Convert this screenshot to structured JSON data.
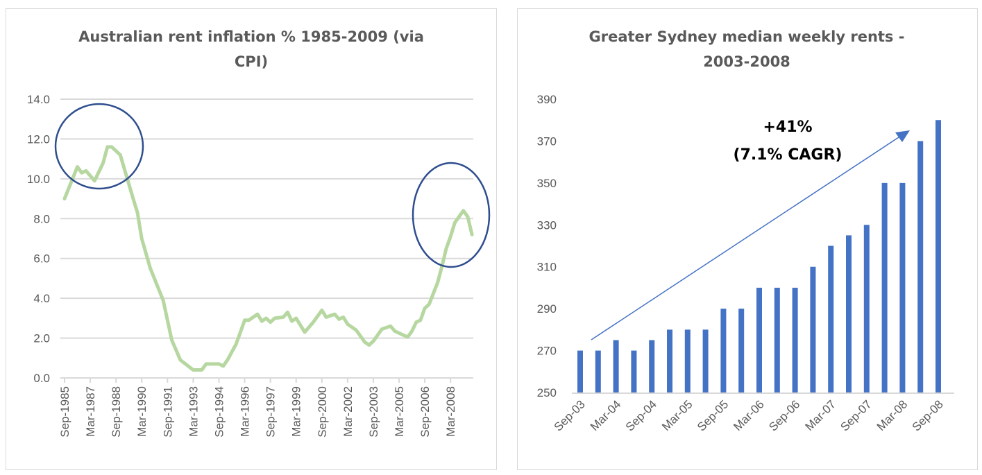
{
  "colors": {
    "line": "#b6d7a0",
    "bar": "#4472c4",
    "grid": "#d9d9d9",
    "circle": "#2f4e8e",
    "arrow": "#4472c4",
    "text": "#595959"
  },
  "chart_data": [
    {
      "type": "line",
      "title": "Australian rent inflation % 1985-2009 (via CPI)",
      "title_lines": [
        "Australian rent inflation % 1985-2009 (via",
        "CPI)"
      ],
      "xlabel": "",
      "ylabel": "",
      "ylim": [
        0,
        14
      ],
      "yticks": [
        "0.0",
        "2.0",
        "4.0",
        "6.0",
        "8.0",
        "10.0",
        "12.0",
        "14.0"
      ],
      "xticks": [
        "Sep-1985",
        "Mar-1987",
        "Sep-1988",
        "Mar-1990",
        "Sep-1991",
        "Mar-1993",
        "Sep-1994",
        "Mar-1996",
        "Sep-1997",
        "Mar-1999",
        "Sep-2000",
        "Mar-2002",
        "Sep-2003",
        "Mar-2005",
        "Sep-2006",
        "Mar-2008"
      ],
      "grid": true,
      "annotations": [
        "circle around 1986-1988 peak",
        "circle around 2008 peak"
      ],
      "points": [
        [
          "Sep-1985",
          9.0
        ],
        [
          "Jun-1986",
          10.6
        ],
        [
          "Sep-1986",
          10.3
        ],
        [
          "Dec-1986",
          10.4
        ],
        [
          "Jun-1987",
          9.9
        ],
        [
          "Dec-1987",
          10.8
        ],
        [
          "Mar-1988",
          11.6
        ],
        [
          "Jun-1988",
          11.6
        ],
        [
          "Dec-1988",
          11.2
        ],
        [
          "Sep-1989",
          9.0
        ],
        [
          "Dec-1989",
          8.3
        ],
        [
          "Mar-1990",
          7.0
        ],
        [
          "Sep-1990",
          5.5
        ],
        [
          "Jun-1991",
          3.9
        ],
        [
          "Dec-1991",
          1.9
        ],
        [
          "Jun-1992",
          0.9
        ],
        [
          "Mar-1993",
          0.4
        ],
        [
          "Sep-1993",
          0.4
        ],
        [
          "Dec-1993",
          0.7
        ],
        [
          "Sep-1994",
          0.7
        ],
        [
          "Dec-1994",
          0.6
        ],
        [
          "Mar-1995",
          0.9
        ],
        [
          "Sep-1995",
          1.7
        ],
        [
          "Mar-1996",
          2.9
        ],
        [
          "Jun-1996",
          2.9
        ],
        [
          "Dec-1996",
          3.2
        ],
        [
          "Mar-1997",
          2.85
        ],
        [
          "Jun-1997",
          3.0
        ],
        [
          "Sep-1997",
          2.8
        ],
        [
          "Dec-1997",
          3.0
        ],
        [
          "Jun-1998",
          3.05
        ],
        [
          "Sep-1998",
          3.3
        ],
        [
          "Dec-1998",
          2.85
        ],
        [
          "Mar-1999",
          3.0
        ],
        [
          "Sep-1999",
          2.3
        ],
        [
          "Mar-2000",
          2.8
        ],
        [
          "Sep-2000",
          3.4
        ],
        [
          "Dec-2000",
          3.05
        ],
        [
          "Jun-2001",
          3.2
        ],
        [
          "Sep-2001",
          2.95
        ],
        [
          "Dec-2001",
          3.05
        ],
        [
          "Mar-2002",
          2.7
        ],
        [
          "Sep-2002",
          2.4
        ],
        [
          "Mar-2003",
          1.8
        ],
        [
          "Jun-2003",
          1.65
        ],
        [
          "Sep-2003",
          1.85
        ],
        [
          "Mar-2004",
          2.45
        ],
        [
          "Sep-2004",
          2.6
        ],
        [
          "Dec-2004",
          2.35
        ],
        [
          "Sep-2005",
          2.05
        ],
        [
          "Dec-2005",
          2.35
        ],
        [
          "Mar-2006",
          2.8
        ],
        [
          "Jun-2006",
          2.9
        ],
        [
          "Sep-2006",
          3.5
        ],
        [
          "Dec-2006",
          3.7
        ],
        [
          "Jun-2007",
          4.8
        ],
        [
          "Sep-2007",
          5.6
        ],
        [
          "Dec-2007",
          6.5
        ],
        [
          "Mar-2008",
          7.1
        ],
        [
          "Jun-2008",
          7.8
        ],
        [
          "Dec-2008",
          8.4
        ],
        [
          "Mar-2009",
          8.1
        ],
        [
          "Jun-2009",
          7.2
        ]
      ]
    },
    {
      "type": "bar",
      "title": "Greater Sydney median weekly rents - 2003-2008",
      "title_lines": [
        "Greater Sydney median weekly rents -",
        "2003-2008"
      ],
      "xlabel": "",
      "ylabel": "",
      "ylim": [
        250,
        390
      ],
      "yticks": [
        "250",
        "270",
        "290",
        "310",
        "330",
        "350",
        "370",
        "390"
      ],
      "categories": [
        "Sep-03",
        "Dec-03",
        "Mar-04",
        "Jun-04",
        "Sep-04",
        "Dec-04",
        "Mar-05",
        "Jun-05",
        "Sep-05",
        "Dec-05",
        "Mar-06",
        "Jun-06",
        "Sep-06",
        "Dec-06",
        "Mar-07",
        "Jun-07",
        "Sep-07",
        "Dec-07",
        "Mar-08",
        "Jun-08",
        "Sep-08"
      ],
      "xticks": [
        "Sep-03",
        "Mar-04",
        "Sep-04",
        "Mar-05",
        "Sep-05",
        "Mar-06",
        "Sep-06",
        "Mar-07",
        "Sep-07",
        "Mar-08",
        "Sep-08"
      ],
      "values": [
        270,
        270,
        275,
        270,
        275,
        280,
        280,
        280,
        290,
        290,
        300,
        300,
        300,
        310,
        320,
        325,
        330,
        350,
        350,
        370,
        380
      ],
      "grid": false,
      "annotation": {
        "line1": "+41%",
        "line2": "(7.1% CAGR)"
      }
    }
  ]
}
